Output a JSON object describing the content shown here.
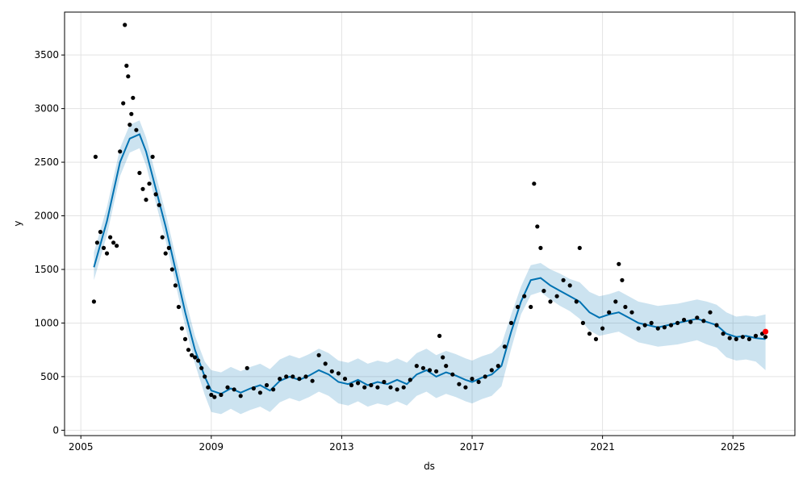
{
  "chart_data": {
    "type": "line",
    "title": "",
    "xlabel": "ds",
    "ylabel": "y",
    "xlim": [
      2004.5,
      2026.9
    ],
    "ylim": [
      -50,
      3900
    ],
    "grid": true,
    "x_ticks": [
      2005,
      2009,
      2013,
      2017,
      2021,
      2025
    ],
    "x_tick_labels": [
      "2005",
      "2009",
      "2013",
      "2017",
      "2021",
      "2025"
    ],
    "y_ticks": [
      0,
      500,
      1000,
      1500,
      2000,
      2500,
      3000,
      3500
    ],
    "y_tick_labels": [
      "0",
      "500",
      "1000",
      "1500",
      "2000",
      "2500",
      "3000",
      "3500"
    ],
    "colors": {
      "observed": "#000000",
      "forecast": "#0072B2",
      "uncertainty": "#0072B2",
      "highlight": "#ff0000"
    },
    "series": [
      {
        "kind": "forecast",
        "x": [
          2005.4,
          2005.8,
          2006.2,
          2006.5,
          2006.8,
          2007.0,
          2007.3,
          2007.6,
          2007.9,
          2008.2,
          2008.5,
          2008.8,
          2009.0,
          2009.3,
          2009.6,
          2009.9,
          2010.2,
          2010.5,
          2010.8,
          2011.1,
          2011.4,
          2011.7,
          2012.0,
          2012.3,
          2012.6,
          2012.9,
          2013.2,
          2013.5,
          2013.8,
          2014.1,
          2014.4,
          2014.7,
          2015.0,
          2015.3,
          2015.6,
          2015.9,
          2016.2,
          2016.5,
          2016.8,
          2017.0,
          2017.3,
          2017.6,
          2017.9,
          2018.2,
          2018.5,
          2018.8,
          2019.1,
          2019.4,
          2019.7,
          2020.0,
          2020.3,
          2020.6,
          2020.9,
          2021.2,
          2021.5,
          2021.8,
          2022.1,
          2022.4,
          2022.7,
          2023.0,
          2023.3,
          2023.6,
          2023.9,
          2024.2,
          2024.5,
          2024.8,
          2025.1,
          2025.4,
          2025.7,
          2026.0
        ],
        "y": [
          1520,
          1950,
          2500,
          2720,
          2760,
          2600,
          2250,
          1900,
          1500,
          1100,
          750,
          500,
          370,
          340,
          390,
          350,
          390,
          420,
          370,
          460,
          500,
          470,
          510,
          560,
          520,
          450,
          430,
          470,
          420,
          450,
          430,
          470,
          430,
          520,
          560,
          500,
          540,
          510,
          470,
          450,
          490,
          520,
          600,
          920,
          1200,
          1400,
          1420,
          1350,
          1300,
          1250,
          1200,
          1100,
          1050,
          1080,
          1100,
          1050,
          1000,
          980,
          960,
          980,
          1000,
          1020,
          1040,
          1010,
          980,
          900,
          870,
          880,
          860,
          850
        ]
      },
      {
        "kind": "uncertainty",
        "x": [
          2005.4,
          2005.8,
          2006.2,
          2006.5,
          2006.8,
          2007.0,
          2007.3,
          2007.6,
          2007.9,
          2008.2,
          2008.5,
          2008.8,
          2009.0,
          2009.3,
          2009.6,
          2009.9,
          2010.2,
          2010.5,
          2010.8,
          2011.1,
          2011.4,
          2011.7,
          2012.0,
          2012.3,
          2012.6,
          2012.9,
          2013.2,
          2013.5,
          2013.8,
          2014.1,
          2014.4,
          2014.7,
          2015.0,
          2015.3,
          2015.6,
          2015.9,
          2016.2,
          2016.5,
          2016.8,
          2017.0,
          2017.3,
          2017.6,
          2017.9,
          2018.2,
          2018.5,
          2018.8,
          2019.1,
          2019.4,
          2019.7,
          2020.0,
          2020.3,
          2020.6,
          2020.9,
          2021.2,
          2021.5,
          2021.8,
          2022.1,
          2022.4,
          2022.7,
          2023.0,
          2023.3,
          2023.6,
          2023.9,
          2024.2,
          2024.5,
          2024.8,
          2025.1,
          2025.4,
          2025.7,
          2026.0
        ],
        "lower": [
          1400,
          1820,
          2370,
          2590,
          2630,
          2470,
          2120,
          1770,
          1370,
          970,
          620,
          330,
          170,
          150,
          200,
          150,
          190,
          220,
          170,
          260,
          300,
          270,
          310,
          360,
          320,
          250,
          230,
          270,
          220,
          250,
          230,
          270,
          230,
          320,
          360,
          300,
          340,
          310,
          270,
          250,
          290,
          320,
          410,
          760,
          1080,
          1260,
          1290,
          1220,
          1160,
          1110,
          1040,
          930,
          880,
          900,
          920,
          870,
          820,
          800,
          780,
          790,
          800,
          820,
          840,
          800,
          770,
          680,
          650,
          660,
          640,
          560
        ],
        "upper": [
          1660,
          2080,
          2630,
          2850,
          2890,
          2730,
          2380,
          2030,
          1630,
          1230,
          880,
          640,
          560,
          540,
          590,
          550,
          590,
          620,
          570,
          660,
          700,
          670,
          710,
          760,
          720,
          650,
          630,
          670,
          620,
          650,
          630,
          670,
          630,
          720,
          760,
          700,
          740,
          710,
          670,
          650,
          690,
          720,
          800,
          1080,
          1340,
          1540,
          1560,
          1500,
          1460,
          1410,
          1380,
          1290,
          1250,
          1270,
          1300,
          1250,
          1200,
          1180,
          1160,
          1170,
          1180,
          1200,
          1220,
          1200,
          1170,
          1100,
          1060,
          1070,
          1060,
          1080
        ]
      },
      {
        "kind": "observed",
        "x": [
          2005.4,
          2005.45,
          2005.5,
          2005.6,
          2005.7,
          2005.8,
          2005.9,
          2006.0,
          2006.1,
          2006.2,
          2006.3,
          2006.35,
          2006.4,
          2006.45,
          2006.5,
          2006.55,
          2006.6,
          2006.7,
          2006.8,
          2006.9,
          2007.0,
          2007.1,
          2007.2,
          2007.3,
          2007.4,
          2007.5,
          2007.6,
          2007.7,
          2007.8,
          2007.9,
          2008.0,
          2008.1,
          2008.2,
          2008.3,
          2008.4,
          2008.5,
          2008.6,
          2008.7,
          2008.8,
          2008.9,
          2009.0,
          2009.1,
          2009.3,
          2009.5,
          2009.7,
          2009.9,
          2010.1,
          2010.3,
          2010.5,
          2010.7,
          2010.9,
          2011.1,
          2011.3,
          2011.5,
          2011.7,
          2011.9,
          2012.1,
          2012.3,
          2012.5,
          2012.7,
          2012.9,
          2013.1,
          2013.3,
          2013.5,
          2013.7,
          2013.9,
          2014.1,
          2014.3,
          2014.5,
          2014.7,
          2014.9,
          2015.1,
          2015.3,
          2015.5,
          2015.7,
          2015.9,
          2016.0,
          2016.1,
          2016.2,
          2016.4,
          2016.6,
          2016.8,
          2017.0,
          2017.2,
          2017.4,
          2017.6,
          2017.8,
          2018.0,
          2018.2,
          2018.4,
          2018.6,
          2018.8,
          2018.9,
          2019.0,
          2019.1,
          2019.2,
          2019.4,
          2019.6,
          2019.8,
          2020.0,
          2020.2,
          2020.3,
          2020.4,
          2020.6,
          2020.8,
          2021.0,
          2021.2,
          2021.4,
          2021.5,
          2021.6,
          2021.7,
          2021.9,
          2022.1,
          2022.3,
          2022.5,
          2022.7,
          2022.9,
          2023.1,
          2023.3,
          2023.5,
          2023.7,
          2023.9,
          2024.1,
          2024.3,
          2024.5,
          2024.7,
          2024.9,
          2025.1,
          2025.3,
          2025.5,
          2025.7,
          2025.9,
          2026.0
        ],
        "y": [
          1200,
          2550,
          1750,
          1850,
          1700,
          1650,
          1800,
          1750,
          1720,
          2600,
          3050,
          3780,
          3400,
          3300,
          2850,
          2950,
          3100,
          2800,
          2400,
          2250,
          2150,
          2300,
          2550,
          2200,
          2100,
          1800,
          1650,
          1700,
          1500,
          1350,
          1150,
          950,
          850,
          750,
          700,
          680,
          650,
          580,
          500,
          400,
          330,
          310,
          330,
          400,
          380,
          320,
          580,
          390,
          350,
          420,
          380,
          480,
          500,
          500,
          480,
          500,
          460,
          700,
          620,
          550,
          530,
          480,
          420,
          440,
          400,
          420,
          400,
          450,
          400,
          380,
          400,
          470,
          600,
          580,
          560,
          550,
          880,
          680,
          600,
          520,
          430,
          400,
          480,
          450,
          500,
          560,
          600,
          780,
          1000,
          1150,
          1250,
          1150,
          2300,
          1900,
          1700,
          1300,
          1200,
          1250,
          1400,
          1350,
          1200,
          1700,
          1000,
          900,
          850,
          950,
          1100,
          1200,
          1550,
          1400,
          1150,
          1100,
          950,
          980,
          1000,
          950,
          960,
          980,
          1000,
          1030,
          1010,
          1050,
          1020,
          1100,
          980,
          900,
          860,
          850,
          870,
          850,
          880,
          900,
          870
        ]
      },
      {
        "kind": "highlight",
        "x": [
          2026.0
        ],
        "y": [
          920
        ]
      }
    ]
  }
}
